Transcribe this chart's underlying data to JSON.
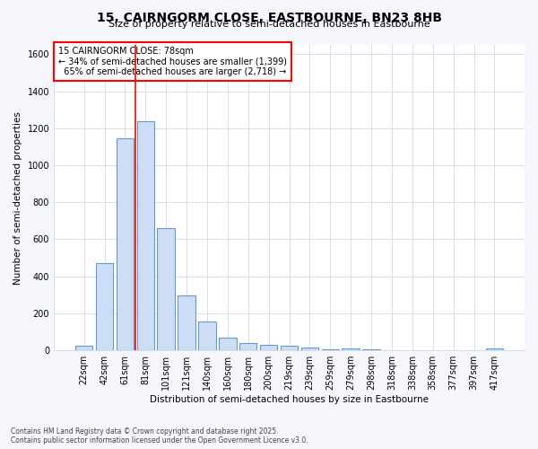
{
  "title": "15, CAIRNGORM CLOSE, EASTBOURNE, BN23 8HB",
  "subtitle": "Size of property relative to semi-detached houses in Eastbourne",
  "xlabel": "Distribution of semi-detached houses by size in Eastbourne",
  "ylabel": "Number of semi-detached properties",
  "footnote": "Contains HM Land Registry data © Crown copyright and database right 2025.\nContains public sector information licensed under the Open Government Licence v3.0.",
  "bar_labels": [
    "22sqm",
    "42sqm",
    "61sqm",
    "81sqm",
    "101sqm",
    "121sqm",
    "140sqm",
    "160sqm",
    "180sqm",
    "200sqm",
    "219sqm",
    "239sqm",
    "259sqm",
    "279sqm",
    "298sqm",
    "318sqm",
    "338sqm",
    "358sqm",
    "377sqm",
    "397sqm",
    "417sqm"
  ],
  "bar_values": [
    25,
    470,
    1145,
    1240,
    660,
    295,
    155,
    70,
    38,
    30,
    25,
    15,
    5,
    10,
    5,
    3,
    2,
    1,
    1,
    1,
    12
  ],
  "bar_color": "#ccddf5",
  "bar_edge_color": "#6699cc",
  "annotation_box_text": "15 CAIRNGORM CLOSE: 78sqm\n← 34% of semi-detached houses are smaller (1,399)\n  65% of semi-detached houses are larger (2,718) →",
  "vline_x": 2.5,
  "vline_color": "red",
  "ylim": [
    0,
    1650
  ],
  "yticks": [
    0,
    200,
    400,
    600,
    800,
    1000,
    1200,
    1400,
    1600
  ],
  "grid_color": "#d0daea",
  "background_color": "#ffffff",
  "fig_background_color": "#f5f7fd"
}
